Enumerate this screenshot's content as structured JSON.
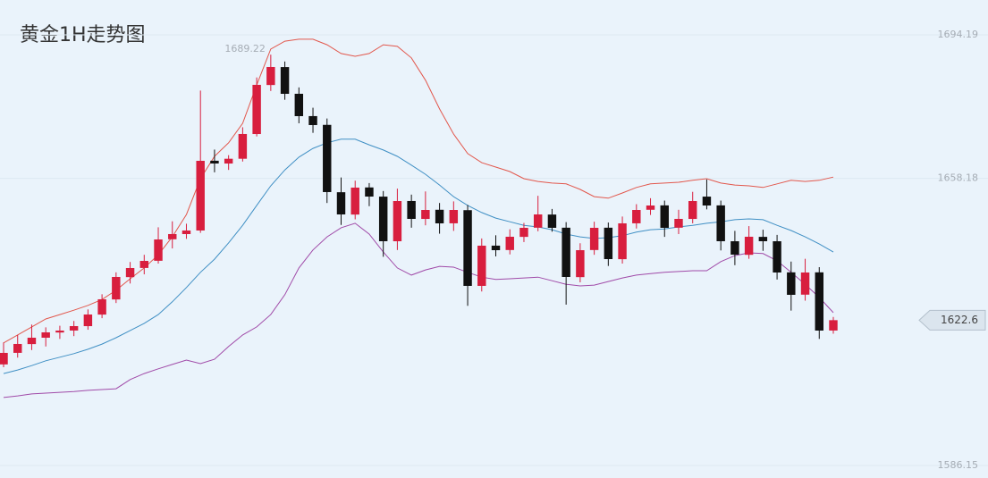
{
  "chart_data": {
    "type": "candlestick",
    "title": "黄金1H走势图",
    "ylim": [
      1583.0,
      1702.93
    ],
    "yticks": [
      1694.19,
      1658.18,
      1586.15
    ],
    "grid": true,
    "up_color": "#d81e3e",
    "down_color": "#111111",
    "high_label": 1689.22,
    "last_price": 1622.6,
    "open": [
      1611.5,
      1614.4,
      1616.6,
      1618.2,
      1619.5,
      1620.0,
      1621.1,
      1624.0,
      1627.8,
      1633.4,
      1635.7,
      1637.5,
      1642.9,
      1644.2,
      1645.1,
      1662.6,
      1661.9,
      1663.1,
      1669.3,
      1681.6,
      1686.1,
      1679.4,
      1673.8,
      1671.6,
      1654.7,
      1649.1,
      1655.9,
      1653.6,
      1642.4,
      1652.5,
      1648.0,
      1650.3,
      1646.9,
      1650.2,
      1631.2,
      1641.3,
      1640.2,
      1643.5,
      1645.8,
      1649.1,
      1645.8,
      1633.4,
      1640.2,
      1645.8,
      1637.9,
      1646.9,
      1650.3,
      1651.4,
      1645.8,
      1648.0,
      1653.6,
      1651.4,
      1642.4,
      1639.0,
      1643.5,
      1642.4,
      1634.6,
      1629.0,
      1634.6,
      1620.0
    ],
    "high": [
      1617.0,
      1618.9,
      1621.5,
      1620.8,
      1621.2,
      1622.4,
      1625.3,
      1629.1,
      1634.6,
      1637.2,
      1639.0,
      1645.9,
      1647.4,
      1646.8,
      1680.2,
      1665.4,
      1664.0,
      1671.0,
      1683.5,
      1689.22,
      1687.5,
      1681.0,
      1675.9,
      1673.2,
      1658.4,
      1657.6,
      1657.0,
      1655.0,
      1655.6,
      1654.1,
      1654.9,
      1652.0,
      1652.4,
      1651.5,
      1643.1,
      1643.9,
      1645.4,
      1647.0,
      1653.8,
      1650.5,
      1647.2,
      1641.9,
      1647.3,
      1647.1,
      1648.6,
      1651.7,
      1653.2,
      1652.6,
      1650.3,
      1654.8,
      1657.9,
      1652.6,
      1645.0,
      1646.2,
      1645.3,
      1644.0,
      1637.3,
      1638.0,
      1635.9,
      1623.4
    ],
    "low": [
      1610.8,
      1613.2,
      1615.1,
      1616.0,
      1617.9,
      1618.6,
      1620.2,
      1623.1,
      1626.9,
      1631.8,
      1634.1,
      1636.8,
      1640.6,
      1643.0,
      1644.5,
      1659.7,
      1660.3,
      1662.4,
      1668.7,
      1680.1,
      1677.9,
      1672.0,
      1669.6,
      1652.0,
      1646.5,
      1647.9,
      1651.2,
      1638.5,
      1640.2,
      1645.8,
      1646.4,
      1644.3,
      1645.0,
      1626.2,
      1629.8,
      1638.6,
      1639.1,
      1642.2,
      1644.9,
      1644.8,
      1626.5,
      1632.1,
      1639.0,
      1636.2,
      1636.8,
      1645.6,
      1649.0,
      1643.5,
      1644.2,
      1646.9,
      1650.4,
      1640.1,
      1636.4,
      1638.0,
      1640.0,
      1632.8,
      1625.0,
      1627.5,
      1617.9,
      1619.2
    ],
    "close": [
      1614.39,
      1616.63,
      1618.2,
      1619.54,
      1619.99,
      1621.11,
      1624.02,
      1627.84,
      1633.44,
      1635.68,
      1637.47,
      1642.85,
      1644.2,
      1645.1,
      1662.58,
      1661.91,
      1663.1,
      1669.31,
      1681.64,
      1686.12,
      1679.39,
      1673.79,
      1671.55,
      1654.74,
      1649.13,
      1655.86,
      1653.61,
      1642.41,
      1652.49,
      1648.01,
      1650.25,
      1646.89,
      1650.25,
      1631.2,
      1641.29,
      1640.16,
      1643.53,
      1645.77,
      1649.13,
      1645.77,
      1633.44,
      1640.16,
      1645.77,
      1637.92,
      1646.89,
      1650.25,
      1651.37,
      1645.77,
      1648.01,
      1652.49,
      1651.37,
      1642.41,
      1639.04,
      1643.53,
      1642.41,
      1634.56,
      1628.96,
      1634.56,
      1619.99,
      1622.6
    ],
    "bands": [
      {
        "color": "#e2574c",
        "values": [
          1616.9,
          1618.9,
          1620.9,
          1622.9,
          1624.0,
          1625.1,
          1626.3,
          1627.8,
          1630.1,
          1633.0,
          1635.7,
          1639.0,
          1643.5,
          1649.1,
          1658.1,
          1663.7,
          1667.1,
          1672.0,
          1681.6,
          1690.6,
          1692.6,
          1693.1,
          1693.1,
          1691.7,
          1689.5,
          1688.8,
          1689.5,
          1691.7,
          1691.3,
          1688.4,
          1682.8,
          1675.6,
          1669.3,
          1664.4,
          1662.1,
          1661.0,
          1659.9,
          1658.1,
          1657.4,
          1657.0,
          1656.8,
          1655.4,
          1653.6,
          1653.2,
          1654.5,
          1655.9,
          1656.8,
          1657.0,
          1657.2,
          1657.7,
          1658.1,
          1657.0,
          1656.5,
          1656.3,
          1655.9,
          1656.8,
          1657.7,
          1657.4,
          1657.7,
          1658.5
        ]
      },
      {
        "color": "#3f8fc4",
        "values": [
          1609.2,
          1610.1,
          1611.2,
          1612.4,
          1613.3,
          1614.2,
          1615.3,
          1616.6,
          1618.2,
          1620.0,
          1621.8,
          1624.0,
          1627.2,
          1630.8,
          1634.6,
          1637.9,
          1642.0,
          1646.4,
          1651.4,
          1656.3,
          1660.3,
          1663.5,
          1665.7,
          1667.1,
          1668.0,
          1668.0,
          1666.6,
          1665.3,
          1663.7,
          1661.5,
          1659.2,
          1656.5,
          1653.6,
          1651.4,
          1649.6,
          1648.2,
          1647.3,
          1646.4,
          1646.0,
          1645.3,
          1644.2,
          1643.5,
          1643.1,
          1643.3,
          1643.8,
          1644.7,
          1645.3,
          1645.5,
          1646.0,
          1646.4,
          1646.9,
          1647.3,
          1647.8,
          1648.0,
          1647.8,
          1646.4,
          1645.1,
          1643.5,
          1641.7,
          1639.7
        ]
      },
      {
        "color": "#a04aa8",
        "values": [
          1603.2,
          1603.6,
          1604.1,
          1604.3,
          1604.5,
          1604.7,
          1605.0,
          1605.2,
          1605.4,
          1607.7,
          1609.2,
          1610.4,
          1611.5,
          1612.6,
          1611.7,
          1612.8,
          1616.0,
          1618.9,
          1620.9,
          1624.0,
          1629.0,
          1635.7,
          1640.2,
          1643.5,
          1645.8,
          1646.9,
          1644.2,
          1639.7,
          1635.7,
          1633.9,
          1635.2,
          1636.1,
          1635.9,
          1634.6,
          1633.4,
          1632.8,
          1633.0,
          1633.2,
          1633.4,
          1632.5,
          1631.6,
          1631.2,
          1631.4,
          1632.3,
          1633.2,
          1633.9,
          1634.3,
          1634.6,
          1634.8,
          1635.0,
          1635.0,
          1637.3,
          1638.8,
          1639.5,
          1639.3,
          1637.5,
          1634.6,
          1631.6,
          1628.3,
          1624.5
        ]
      }
    ]
  }
}
